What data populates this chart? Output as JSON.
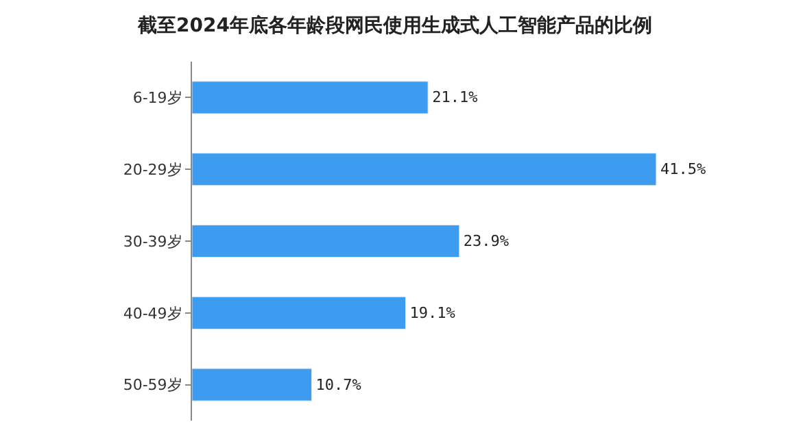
{
  "chart_data": {
    "type": "bar",
    "orientation": "horizontal",
    "title": "截至2024年底各年龄段网民使用生成式人工智能产品的比例",
    "categories": [
      "6-19岁",
      "20-29岁",
      "30-39岁",
      "40-49岁",
      "50-59岁"
    ],
    "values": [
      21.1,
      41.5,
      23.9,
      19.1,
      10.7
    ],
    "value_labels": [
      "21.1%",
      "41.5%",
      "23.9%",
      "19.1%",
      "10.7%"
    ],
    "color": "#3d9bf0"
  }
}
